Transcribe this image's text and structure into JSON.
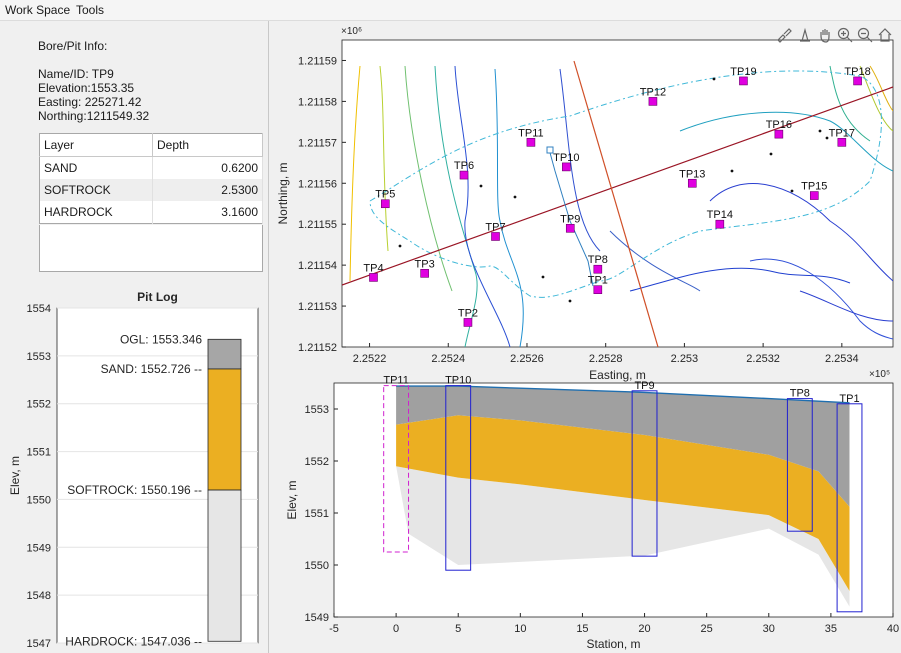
{
  "menu": [
    "Work Space",
    "Tools"
  ],
  "info": {
    "heading": "Bore/Pit Info:",
    "name": "Name/ID: TP9",
    "elevation": "Elevation:1553.35",
    "easting": "Easting: 225271.42",
    "northing": "Northing:1211549.32"
  },
  "layer_table": {
    "headers": [
      "Layer",
      "Depth"
    ],
    "rows": [
      {
        "layer": "SAND",
        "depth": "0.6200"
      },
      {
        "layer": "SOFTROCK",
        "depth": "2.5300"
      },
      {
        "layer": "HARDROCK",
        "depth": "3.1600"
      }
    ]
  },
  "toolbar_icons": [
    "brush-icon",
    "data-tips-icon",
    "pan-hand-icon",
    "zoom-in-icon",
    "zoom-out-icon",
    "home-icon"
  ],
  "colors": {
    "sand": "#ebaf22",
    "softrock": "#a0a0a0",
    "hardrock": "#e6e6e6",
    "pit_marker": "#e000e0",
    "profile_line": "#9a1525"
  },
  "chart_data": [
    {
      "type": "bar",
      "title": "Pit Log",
      "xlabel": "",
      "ylabel": "Elev, m",
      "ylim": [
        1547,
        1554
      ],
      "yticks": [
        "1554",
        "1553",
        "1552",
        "1551",
        "1550",
        "1549",
        "1548",
        "1547"
      ],
      "layers": [
        {
          "name": "OGL",
          "label": "OGL: 1553.346",
          "top": 1553.346
        },
        {
          "name": "SAND",
          "label": "SAND: 1552.726 --",
          "top": 1552.726
        },
        {
          "name": "SOFTROCK",
          "label": "SOFTROCK: 1550.196 --",
          "top": 1550.196
        },
        {
          "name": "HARDROCK",
          "label": "HARDROCK: 1547.036 --",
          "top": 1547.036
        }
      ]
    },
    {
      "type": "scatter",
      "title": "",
      "xlabel": "Easting, m",
      "ylabel": "Northing, m",
      "x_exponent": "×10⁵",
      "y_exponent": "×10⁶",
      "xlim": [
        2.25213,
        2.25353
      ],
      "ylim": [
        1.21152,
        1.211595
      ],
      "xticks": [
        "2.2522",
        "2.2524",
        "2.2526",
        "2.2528",
        "2.253",
        "2.2532",
        "2.2534"
      ],
      "yticks": [
        "1.21159",
        "1.21158",
        "1.21157",
        "1.21156",
        "1.21155",
        "1.21154",
        "1.21153",
        "1.21152"
      ],
      "points": [
        {
          "name": "TP1",
          "x": 2.25278,
          "y": 1.211534
        },
        {
          "name": "TP2",
          "x": 2.25245,
          "y": 1.211526
        },
        {
          "name": "TP3",
          "x": 2.25234,
          "y": 1.211538
        },
        {
          "name": "TP4",
          "x": 2.25221,
          "y": 1.211537
        },
        {
          "name": "TP5",
          "x": 2.25224,
          "y": 1.211555
        },
        {
          "name": "TP6",
          "x": 2.25244,
          "y": 1.211562
        },
        {
          "name": "TP7",
          "x": 2.25252,
          "y": 1.211547
        },
        {
          "name": "TP8",
          "x": 2.25278,
          "y": 1.211539
        },
        {
          "name": "TP9",
          "x": 2.25271,
          "y": 1.211549
        },
        {
          "name": "TP10",
          "x": 2.2527,
          "y": 1.211564
        },
        {
          "name": "TP11",
          "x": 2.25261,
          "y": 1.21157
        },
        {
          "name": "TP12",
          "x": 2.25292,
          "y": 1.21158
        },
        {
          "name": "TP13",
          "x": 2.25302,
          "y": 1.21156
        },
        {
          "name": "TP14",
          "x": 2.25309,
          "y": 1.21155
        },
        {
          "name": "TP15",
          "x": 2.25333,
          "y": 1.211557
        },
        {
          "name": "TP16",
          "x": 2.25324,
          "y": 1.211572
        },
        {
          "name": "TP17",
          "x": 2.2534,
          "y": 1.21157
        },
        {
          "name": "TP18",
          "x": 2.25344,
          "y": 1.211585
        },
        {
          "name": "TP19",
          "x": 2.25315,
          "y": 1.211585
        }
      ]
    },
    {
      "type": "area",
      "title": "",
      "xlabel": "Station, m",
      "ylabel": "Elev, m",
      "xlim": [
        -5,
        40
      ],
      "ylim": [
        1549,
        1553.5
      ],
      "xticks": [
        "-5",
        "0",
        "5",
        "10",
        "15",
        "20",
        "25",
        "30",
        "35",
        "40"
      ],
      "yticks": [
        "1553",
        "1552",
        "1551",
        "1550",
        "1549"
      ],
      "ogl": [
        [
          0,
          1553.44
        ],
        [
          5,
          1553.44
        ],
        [
          10,
          1553.4
        ],
        [
          20,
          1553.32
        ],
        [
          30,
          1553.2
        ],
        [
          36.5,
          1553.12
        ]
      ],
      "sand_bottom": [
        [
          0,
          1552.7
        ],
        [
          5,
          1552.88
        ],
        [
          10,
          1552.78
        ],
        [
          20,
          1552.5
        ],
        [
          30,
          1552.12
        ],
        [
          34,
          1551.8
        ],
        [
          36.5,
          1551.12
        ]
      ],
      "softrock_bottom": [
        [
          0,
          1551.9
        ],
        [
          5,
          1551.68
        ],
        [
          10,
          1551.55
        ],
        [
          20,
          1551.25
        ],
        [
          30,
          1550.96
        ],
        [
          34,
          1550.5
        ],
        [
          36.5,
          1549.5
        ]
      ],
      "hardrock_bottom": [
        [
          1,
          1550.6
        ],
        [
          5,
          1550
        ],
        [
          10,
          1550.06
        ],
        [
          20,
          1550.18
        ],
        [
          30,
          1550.7
        ],
        [
          34,
          1550.2
        ],
        [
          36.5,
          1549.2
        ]
      ],
      "pits": [
        {
          "name": "TP11",
          "x": 0,
          "top": 1553.45,
          "bottom": 1550.25,
          "dashed": true
        },
        {
          "name": "TP10",
          "x": 5,
          "top": 1553.45,
          "bottom": 1549.9,
          "dashed": false
        },
        {
          "name": "TP9",
          "x": 20,
          "top": 1553.35,
          "bottom": 1550.17,
          "dashed": false
        },
        {
          "name": "TP8",
          "x": 32.5,
          "top": 1553.2,
          "bottom": 1550.65,
          "dashed": false
        },
        {
          "name": "TP1",
          "x": 36.5,
          "top": 1553.1,
          "bottom": 1549.1,
          "dashed": false
        }
      ]
    }
  ]
}
